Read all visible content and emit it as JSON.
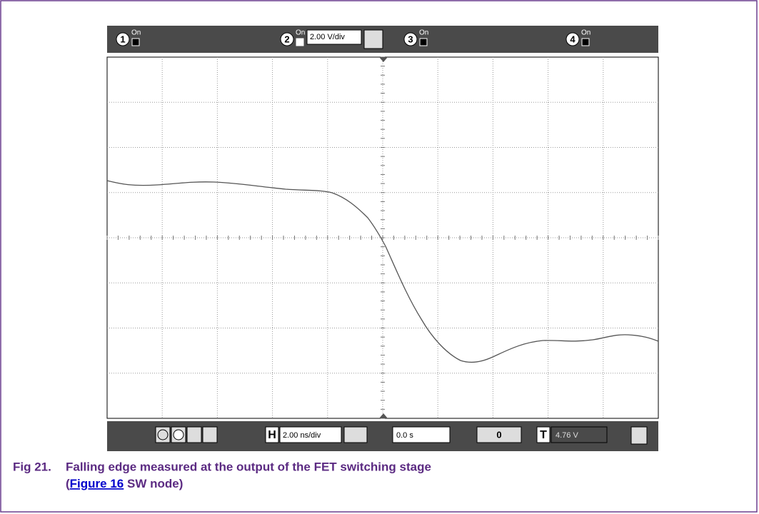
{
  "toolbar": {
    "channels": [
      {
        "label": "1",
        "state": "On"
      },
      {
        "label": "2",
        "state": "On"
      },
      {
        "label": "3",
        "state": "On"
      },
      {
        "label": "4",
        "state": "On"
      }
    ],
    "ch2_scale": "2.00 V/div"
  },
  "bottom": {
    "h": "H",
    "timebase": "2.00 ns/div",
    "position": "0.0 s",
    "trigger_btn": "0",
    "t": "T",
    "trigger_level": "4.76 V"
  },
  "caption": {
    "number": "Fig 21.",
    "line1": "Falling edge measured at the output of the FET switching stage",
    "line2_open": "(",
    "link": "Figure 16",
    "line2_rest": " SW node)"
  }
}
